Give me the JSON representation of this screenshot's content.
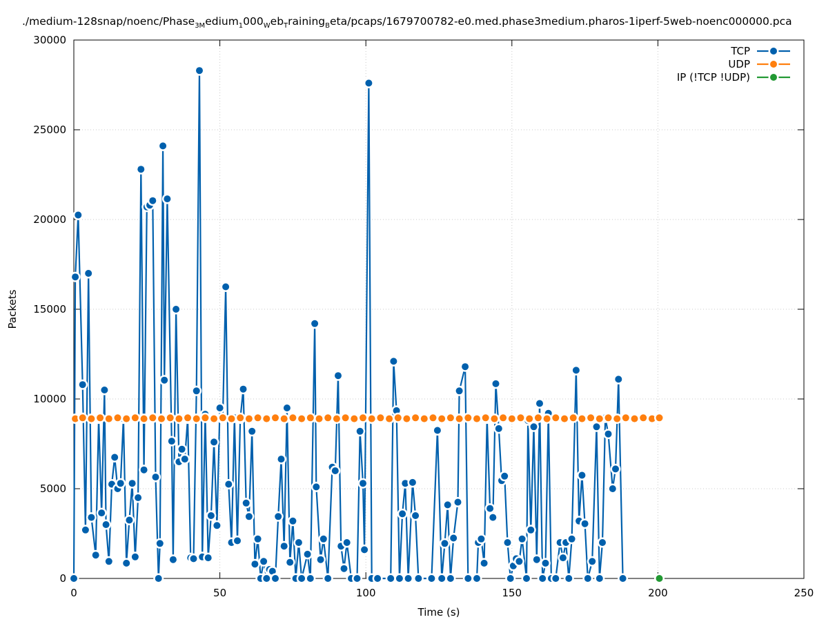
{
  "chart_data": {
    "type": "line",
    "title": "./medium-128snap/noenc/Phase_3Medium_1000Web_TrainingBeta/pcaps/1679700782-e0.med.phase3medium.pharos-1iperf-5web-noenc000000.pca",
    "title_parts": [
      {
        "text": "./medium-128snap/noenc/Phase",
        "sub": false
      },
      {
        "text": "3M",
        "sub": true
      },
      {
        "text": "edium",
        "sub": false
      },
      {
        "text": "1",
        "sub": true
      },
      {
        "text": "000",
        "sub": false
      },
      {
        "text": "W",
        "sub": true
      },
      {
        "text": "eb",
        "sub": false
      },
      {
        "text": "T",
        "sub": true
      },
      {
        "text": "raining",
        "sub": false
      },
      {
        "text": "B",
        "sub": true
      },
      {
        "text": "eta/pcaps/1679700782-e0.med.phase3medium.pharos-1iperf-5web-noenc000000.pca",
        "sub": false
      }
    ],
    "xlabel": "Time (s)",
    "ylabel": "Packets",
    "xlim": [
      0,
      250
    ],
    "ylim": [
      0,
      30000
    ],
    "x_ticks": [
      "0",
      "50",
      "100",
      "150",
      "200",
      "250"
    ],
    "y_ticks": [
      "0",
      "5000",
      "10000",
      "15000",
      "20000",
      "25000",
      "30000"
    ],
    "x_tick_values": [
      0,
      50,
      100,
      150,
      200,
      250
    ],
    "y_tick_values": [
      0,
      5000,
      10000,
      15000,
      20000,
      25000,
      30000
    ],
    "grid": true,
    "legend_position": "top-right",
    "series": [
      {
        "name": "TCP",
        "color": "#0060ad",
        "points": [
          [
            0,
            0
          ],
          [
            0.5,
            16800
          ],
          [
            1.5,
            20250
          ],
          [
            3,
            10800
          ],
          [
            4,
            2700
          ],
          [
            5,
            17000
          ],
          [
            6,
            3400
          ],
          [
            7.5,
            1300
          ],
          [
            8.5,
            8900
          ],
          [
            9.5,
            3650
          ],
          [
            10.5,
            10500
          ],
          [
            11,
            3000
          ],
          [
            12,
            950
          ],
          [
            13,
            5250
          ],
          [
            14,
            6750
          ],
          [
            15,
            5000
          ],
          [
            16,
            5300
          ],
          [
            17,
            8900
          ],
          [
            18,
            850
          ],
          [
            19,
            3250
          ],
          [
            20,
            5300
          ],
          [
            21,
            1200
          ],
          [
            22,
            4500
          ],
          [
            23,
            22800
          ],
          [
            24,
            6050
          ],
          [
            25,
            20700
          ],
          [
            26,
            20800
          ],
          [
            27,
            21050
          ],
          [
            28,
            5650
          ],
          [
            29,
            0
          ],
          [
            29.5,
            1950
          ],
          [
            30.5,
            24100
          ],
          [
            31,
            11050
          ],
          [
            32,
            21150
          ],
          [
            33.5,
            7650
          ],
          [
            34,
            1050
          ],
          [
            35,
            15000
          ],
          [
            36,
            6500
          ],
          [
            37,
            7200
          ],
          [
            38,
            6650
          ],
          [
            39,
            8900
          ],
          [
            40,
            1150
          ],
          [
            41,
            1100
          ],
          [
            42,
            10450
          ],
          [
            43,
            28300
          ],
          [
            44,
            1200
          ],
          [
            45,
            9150
          ],
          [
            46,
            1150
          ],
          [
            47,
            3500
          ],
          [
            48,
            7600
          ],
          [
            49,
            2950
          ],
          [
            50,
            9500
          ],
          [
            51,
            8900
          ],
          [
            52,
            16250
          ],
          [
            53,
            5250
          ],
          [
            54,
            2000
          ],
          [
            55,
            8950
          ],
          [
            56,
            2100
          ],
          [
            57,
            8900
          ],
          [
            58,
            10550
          ],
          [
            59,
            4200
          ],
          [
            60,
            3450
          ],
          [
            61,
            8200
          ],
          [
            62,
            800
          ],
          [
            63,
            2200
          ],
          [
            64,
            0
          ],
          [
            65,
            950
          ],
          [
            66,
            0
          ],
          [
            67,
            500
          ],
          [
            68,
            400
          ],
          [
            69,
            0
          ],
          [
            70,
            3450
          ],
          [
            71,
            6650
          ],
          [
            72,
            1800
          ],
          [
            73,
            9500
          ],
          [
            74,
            900
          ],
          [
            75,
            3200
          ],
          [
            76,
            0
          ],
          [
            77,
            2000
          ],
          [
            78,
            0
          ],
          [
            80,
            1350
          ],
          [
            81,
            0
          ],
          [
            82.5,
            14200
          ],
          [
            83,
            5100
          ],
          [
            84.5,
            1050
          ],
          [
            85.5,
            2200
          ],
          [
            87,
            0
          ],
          [
            88.5,
            6200
          ],
          [
            89.5,
            6000
          ],
          [
            90.5,
            11300
          ],
          [
            91.5,
            1800
          ],
          [
            92.5,
            550
          ],
          [
            93.5,
            2000
          ],
          [
            95,
            0
          ],
          [
            97,
            0
          ],
          [
            98,
            8200
          ],
          [
            99,
            5300
          ],
          [
            99.5,
            1600
          ],
          [
            101,
            27600
          ],
          [
            102,
            0
          ],
          [
            104,
            0
          ],
          [
            108.5,
            0
          ],
          [
            109.5,
            12100
          ],
          [
            110.5,
            9350
          ],
          [
            111.5,
            0
          ],
          [
            112.5,
            3600
          ],
          [
            113.5,
            5300
          ],
          [
            114.5,
            0
          ],
          [
            116,
            5350
          ],
          [
            117,
            3500
          ],
          [
            118,
            0
          ],
          [
            122.5,
            0
          ],
          [
            124.5,
            8250
          ],
          [
            126,
            0
          ],
          [
            127,
            1950
          ],
          [
            128,
            4100
          ],
          [
            129,
            0
          ],
          [
            130,
            2250
          ],
          [
            131.5,
            4250
          ],
          [
            132,
            10450
          ],
          [
            134,
            11800
          ],
          [
            135,
            0
          ],
          [
            138,
            0
          ],
          [
            138.5,
            2000
          ],
          [
            139.5,
            2200
          ],
          [
            140.5,
            850
          ],
          [
            141.5,
            8900
          ],
          [
            142.5,
            3900
          ],
          [
            143.5,
            3400
          ],
          [
            144.5,
            10850
          ],
          [
            145.5,
            8350
          ],
          [
            146.5,
            5450
          ],
          [
            147.5,
            5700
          ],
          [
            148.5,
            2000
          ],
          [
            149.5,
            0
          ],
          [
            150.5,
            700
          ],
          [
            151.5,
            1100
          ],
          [
            152.5,
            950
          ],
          [
            153.5,
            2200
          ],
          [
            155,
            0
          ],
          [
            155.5,
            8800
          ],
          [
            156.5,
            2700
          ],
          [
            157.5,
            8450
          ],
          [
            158.5,
            1050
          ],
          [
            159.5,
            9750
          ],
          [
            160.5,
            0
          ],
          [
            161.5,
            850
          ],
          [
            162.5,
            9200
          ],
          [
            163.5,
            0
          ],
          [
            165,
            0
          ],
          [
            166.5,
            2000
          ],
          [
            167.5,
            1150
          ],
          [
            168.5,
            2000
          ],
          [
            169.5,
            0
          ],
          [
            170.5,
            2200
          ],
          [
            172,
            11600
          ],
          [
            173,
            3200
          ],
          [
            174,
            5750
          ],
          [
            175,
            3050
          ],
          [
            176,
            0
          ],
          [
            177.5,
            950
          ],
          [
            179,
            8450
          ],
          [
            180,
            0
          ],
          [
            181,
            2000
          ],
          [
            182,
            8950
          ],
          [
            183,
            8050
          ],
          [
            184.5,
            5000
          ],
          [
            185.5,
            6100
          ],
          [
            186.5,
            11100
          ],
          [
            188,
            0
          ]
        ]
      },
      {
        "name": "UDP",
        "color": "#ff7f0e",
        "points": [
          [
            0.5,
            8900
          ],
          [
            3,
            8950
          ],
          [
            6,
            8900
          ],
          [
            9,
            8950
          ],
          [
            12,
            8900
          ],
          [
            15,
            8950
          ],
          [
            18,
            8900
          ],
          [
            21,
            8950
          ],
          [
            24,
            8900
          ],
          [
            27,
            8950
          ],
          [
            30,
            8900
          ],
          [
            33,
            8950
          ],
          [
            36,
            8900
          ],
          [
            39,
            8950
          ],
          [
            42,
            8900
          ],
          [
            45,
            8950
          ],
          [
            48,
            8900
          ],
          [
            51,
            8950
          ],
          [
            54,
            8900
          ],
          [
            57,
            8950
          ],
          [
            60,
            8900
          ],
          [
            63,
            8950
          ],
          [
            66,
            8900
          ],
          [
            69,
            8950
          ],
          [
            72,
            8900
          ],
          [
            75,
            8950
          ],
          [
            78,
            8900
          ],
          [
            81,
            8950
          ],
          [
            84,
            8900
          ],
          [
            87,
            8950
          ],
          [
            90,
            8900
          ],
          [
            93,
            8950
          ],
          [
            96,
            8900
          ],
          [
            99,
            8950
          ],
          [
            102,
            8900
          ],
          [
            105,
            8950
          ],
          [
            108,
            8900
          ],
          [
            111,
            8950
          ],
          [
            114,
            8900
          ],
          [
            117,
            8950
          ],
          [
            120,
            8900
          ],
          [
            123,
            8950
          ],
          [
            126,
            8900
          ],
          [
            129,
            8950
          ],
          [
            132,
            8900
          ],
          [
            135,
            8950
          ],
          [
            138,
            8900
          ],
          [
            141,
            8950
          ],
          [
            144,
            8900
          ],
          [
            147,
            8950
          ],
          [
            150,
            8900
          ],
          [
            153,
            8950
          ],
          [
            156,
            8900
          ],
          [
            159,
            8950
          ],
          [
            162,
            8900
          ],
          [
            165,
            8950
          ],
          [
            168,
            8900
          ],
          [
            171,
            8950
          ],
          [
            174,
            8900
          ],
          [
            177,
            8950
          ],
          [
            180,
            8900
          ],
          [
            183,
            8950
          ],
          [
            186,
            8900
          ],
          [
            189,
            8950
          ],
          [
            192,
            8900
          ],
          [
            195,
            8950
          ],
          [
            198,
            8900
          ],
          [
            200.5,
            8950
          ]
        ]
      },
      {
        "name": "IP (!TCP  !UDP)",
        "color": "#229933",
        "points": [
          [
            200.5,
            0
          ]
        ]
      }
    ]
  }
}
